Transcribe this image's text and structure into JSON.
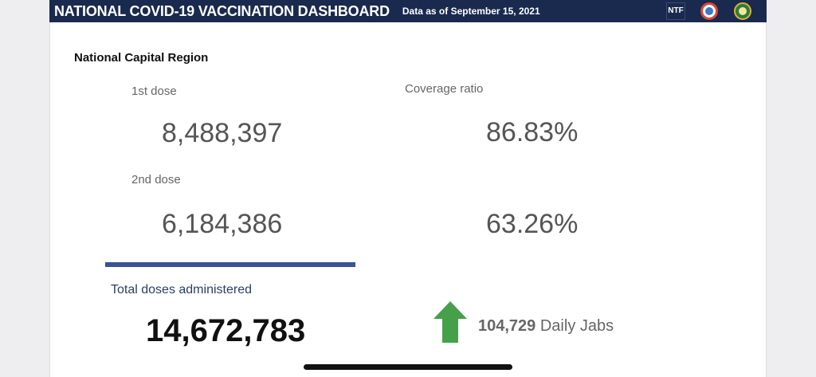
{
  "header": {
    "title": "NATIONAL COVID-19 VACCINATION DASHBOARD",
    "as_of": "Data as of September 15, 2021",
    "logos": {
      "ntf": "NTF",
      "icons": [
        "ntf-logo-icon",
        "doh-logo-icon",
        "government-seal-icon"
      ]
    },
    "color": "#1a2a4e"
  },
  "region": "National Capital Region",
  "doses": {
    "first_label": "1st dose",
    "first_value": "8,488,397",
    "second_label": "2nd dose",
    "second_value": "6,184,386"
  },
  "coverage": {
    "label": "Coverage ratio",
    "first": "86.83%",
    "second": "63.26%"
  },
  "total": {
    "label": "Total doses administered",
    "value": "14,672,783"
  },
  "daily": {
    "value": "104,729",
    "label": "Daily Jabs",
    "trend": "up",
    "arrow_color": "#46a04a"
  },
  "accent_color": "#3a5394"
}
